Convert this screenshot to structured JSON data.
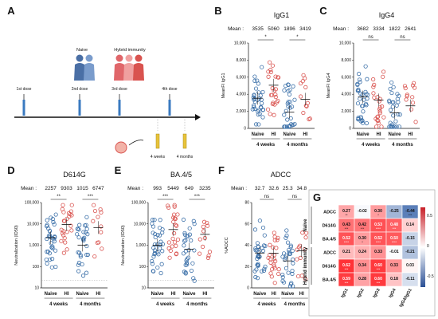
{
  "colors": {
    "naive": "#3a6fa8",
    "hi": "#d9534f",
    "hm_hi": "#d6242d",
    "hm_lo": "#2f5fa8"
  },
  "panelA": {
    "letter": "A",
    "groups": [
      "Naive",
      "Hybrid immunity"
    ],
    "doses": [
      "1st dose",
      "2nd dose",
      "3rd dose",
      "4th dose"
    ],
    "timepoints": [
      "4 weeks",
      "4 months"
    ]
  },
  "panels": [
    {
      "letter": "B",
      "title": "IgG1",
      "ylabel": "MeanFI IgG1",
      "means": [
        "3535",
        "5060",
        "1896",
        "3419"
      ],
      "yticks": [
        "0",
        "2,000",
        "4,000",
        "6,000",
        "8,000",
        "10,000"
      ],
      "sig": [
        "*",
        "*"
      ],
      "xlabels": [
        "Naive",
        "HI",
        "Naive",
        "HI"
      ],
      "conds": [
        "4 weeks",
        "4 months"
      ],
      "mean_label": "Mean :"
    },
    {
      "letter": "C",
      "title": "IgG4",
      "ylabel": "MeanFI IgG4",
      "means": [
        "3682",
        "3334",
        "1822",
        "2641"
      ],
      "yticks": [
        "0",
        "2,000",
        "4,000",
        "6,000",
        "8,000",
        "10,000"
      ],
      "sig": [
        "ns",
        "ns"
      ],
      "xlabels": [
        "Naive",
        "HI",
        "Naive",
        "HI"
      ],
      "conds": [
        "4 weeks",
        "4 months"
      ],
      "mean_label": "Mean :"
    },
    {
      "letter": "D",
      "title": "D614G",
      "ylabel": "Neutralization (ID50)",
      "means": [
        "2257",
        "9303",
        "1015",
        "6747"
      ],
      "yticks": [
        "10",
        "100",
        "1,000",
        "10,000",
        "100,000"
      ],
      "sig": [
        "**",
        "***"
      ],
      "xlabels": [
        "Naive",
        "HI",
        "Naive",
        "HI"
      ],
      "conds": [
        "4 weeks",
        "4 months"
      ],
      "mean_label": "Mean :"
    },
    {
      "letter": "E",
      "title": "BA.4/5",
      "ylabel": "Neutralization (ID50)",
      "means": [
        "993",
        "5449",
        "649",
        "3235"
      ],
      "yticks": [
        "10",
        "100",
        "1,000",
        "10,000",
        "100,000"
      ],
      "sig": [
        "***",
        "***"
      ],
      "xlabels": [
        "Naive",
        "HI",
        "Naive",
        "HI"
      ],
      "conds": [
        "4 weeks",
        "4 months"
      ],
      "mean_label": "Mean :"
    },
    {
      "letter": "F",
      "title": "ADCC",
      "ylabel": "%ADCC",
      "means": [
        "32.7",
        "32.6",
        "25.3",
        "34.8"
      ],
      "yticks": [
        "0",
        "20",
        "40",
        "60",
        "80"
      ],
      "sig": [
        "ns",
        "ns"
      ],
      "xlabels": [
        "Naive",
        "HI",
        "Naive",
        "HI"
      ],
      "conds": [
        "4 weeks",
        "4 months"
      ],
      "mean_label": "Mean :"
    }
  ],
  "heatmap": {
    "letter": "G",
    "rows": [
      "ADCC",
      "D614G",
      "BA.4/5",
      "ADCC",
      "D614G",
      "BA.4/5"
    ],
    "cols": [
      "IgG1",
      "IgG2",
      "IgG3",
      "IgG4",
      "IgG4/IgG1"
    ],
    "groups": [
      "Naive",
      "Hybrid immunity"
    ],
    "values": [
      [
        "0.27",
        "-0.02",
        "0.30",
        "-0.25",
        "-0.44"
      ],
      [
        "0.43",
        "0.42",
        "0.53",
        "0.48",
        "0.14"
      ],
      [
        "0.52",
        "0.30",
        "0.52",
        "0.50",
        "-0.15"
      ],
      [
        "0.21",
        "0.24",
        "0.33",
        "-0.01",
        "-0.21"
      ],
      [
        "0.62",
        "0.34",
        "0.60",
        "0.33",
        "0.03"
      ],
      [
        "0.59",
        "0.28",
        "0.60",
        "0.18",
        "-0.11"
      ]
    ],
    "stars": [
      [
        "**",
        "",
        "*",
        "",
        "***"
      ],
      [
        "***",
        "***",
        "****",
        "***",
        ""
      ],
      [
        "****",
        "*",
        "****",
        "****",
        ""
      ],
      [
        "",
        "",
        "",
        "",
        ""
      ],
      [
        "***",
        "",
        "***",
        "",
        ""
      ],
      [
        "***",
        "",
        "***",
        "",
        ""
      ]
    ],
    "scale": [
      "0.5",
      "0",
      "-0.5"
    ]
  },
  "chart_data": [
    {
      "type": "scatter",
      "title": "IgG1",
      "ylabel": "MeanFI IgG1",
      "ylim": [
        0,
        10000
      ],
      "categories": [
        "Naive 4 weeks",
        "HI 4 weeks",
        "Naive 4 months",
        "HI 4 months"
      ],
      "means": [
        3535,
        5060,
        1896,
        3419
      ]
    },
    {
      "type": "scatter",
      "title": "IgG4",
      "ylabel": "MeanFI IgG4",
      "ylim": [
        0,
        10000
      ],
      "categories": [
        "Naive 4 weeks",
        "HI 4 weeks",
        "Naive 4 months",
        "HI 4 months"
      ],
      "means": [
        3682,
        3334,
        1822,
        2641
      ]
    },
    {
      "type": "scatter",
      "title": "D614G",
      "ylabel": "Neutralization (ID50)",
      "scale": "log",
      "ylim": [
        10,
        100000
      ],
      "categories": [
        "Naive 4 weeks",
        "HI 4 weeks",
        "Naive 4 months",
        "HI 4 months"
      ],
      "means": [
        2257,
        9303,
        1015,
        6747
      ]
    },
    {
      "type": "scatter",
      "title": "BA.4/5",
      "ylabel": "Neutralization (ID50)",
      "scale": "log",
      "ylim": [
        10,
        100000
      ],
      "categories": [
        "Naive 4 weeks",
        "HI 4 weeks",
        "Naive 4 months",
        "HI 4 months"
      ],
      "means": [
        993,
        5449,
        649,
        3235
      ]
    },
    {
      "type": "scatter",
      "title": "ADCC",
      "ylabel": "%ADCC",
      "ylim": [
        0,
        80
      ],
      "categories": [
        "Naive 4 weeks",
        "HI 4 weeks",
        "Naive 4 months",
        "HI 4 months"
      ],
      "means": [
        32.7,
        32.6,
        25.3,
        34.8
      ]
    },
    {
      "type": "heatmap",
      "rows": [
        "ADCC",
        "D614G",
        "BA.4/5",
        "ADCC",
        "D614G",
        "BA.4/5"
      ],
      "cols": [
        "IgG1",
        "IgG2",
        "IgG3",
        "IgG4",
        "IgG4/IgG1"
      ],
      "values": [
        [
          0.27,
          -0.02,
          0.3,
          -0.25,
          -0.44
        ],
        [
          0.43,
          0.42,
          0.53,
          0.48,
          0.14
        ],
        [
          0.52,
          0.3,
          0.52,
          0.5,
          -0.15
        ],
        [
          0.21,
          0.24,
          0.33,
          -0.01,
          -0.21
        ],
        [
          0.62,
          0.34,
          0.6,
          0.33,
          0.03
        ],
        [
          0.59,
          0.28,
          0.6,
          0.18,
          -0.11
        ]
      ]
    }
  ]
}
